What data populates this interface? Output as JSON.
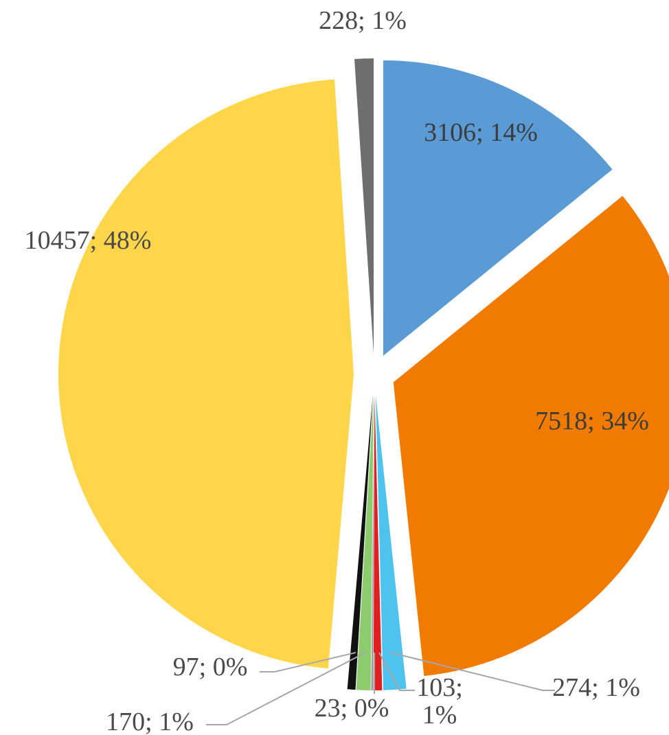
{
  "chart_data": {
    "type": "pie",
    "exploded": true,
    "legend": "none",
    "slices": [
      {
        "value": 3106,
        "percent": "14%",
        "label": "3106; 14%",
        "color": "#5B9BD5"
      },
      {
        "value": 7518,
        "percent": "34%",
        "label": "7518; 34%",
        "color": "#F07B00"
      },
      {
        "value": 274,
        "percent": "1%",
        "label": "274; 1%",
        "color": "#4DC3EE"
      },
      {
        "value": 103,
        "percent": "1%",
        "label_lines": [
          "103;",
          "1%"
        ],
        "color": "#E02020"
      },
      {
        "value": 23,
        "percent": "0%",
        "label": "23; 0%",
        "color": "#9E9E9E"
      },
      {
        "value": 170,
        "percent": "1%",
        "label": "170; 1%",
        "color": "#8CCB6E"
      },
      {
        "value": 97,
        "percent": "0%",
        "label": "97; 0%",
        "color": "#111111"
      },
      {
        "value": 10457,
        "percent": "48%",
        "label": "10457; 48%",
        "color": "#FFD54A"
      },
      {
        "value": 228,
        "percent": "1%",
        "label": "228; 1%",
        "color": "#6E6E6E"
      }
    ]
  }
}
